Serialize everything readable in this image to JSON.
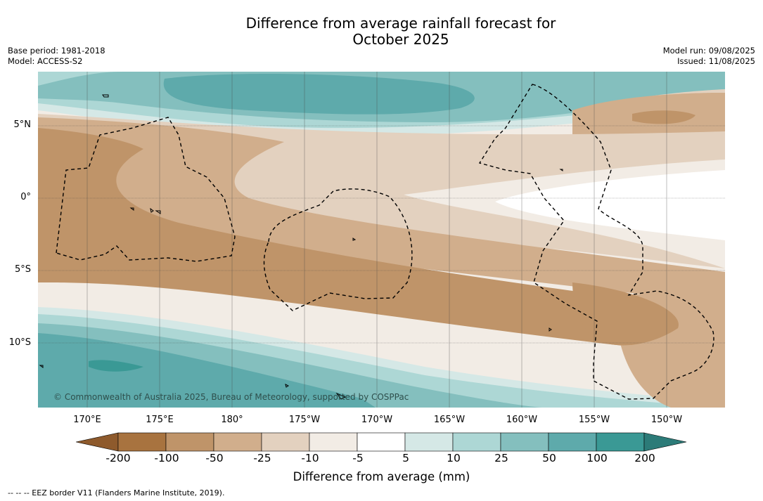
{
  "title": {
    "line1": "Difference from average rainfall forecast for",
    "line2": "October 2025"
  },
  "meta": {
    "base_period": "Base period: 1981-2018",
    "model": "Model: ACCESS-S2",
    "model_run": "Model run: 09/08/2025",
    "issued": "Issued: 11/08/2025"
  },
  "lat_labels": [
    "5°N",
    "0°",
    "5°S",
    "10°S"
  ],
  "lon_labels": [
    "170°E",
    "175°E",
    "180°",
    "175°W",
    "170°W",
    "165°W",
    "160°W",
    "155°W",
    "150°W"
  ],
  "credit": "© Commonwealth of Australia 2025, Bureau of Meteorology, supported by COSPPac",
  "colorbar": {
    "ticks": [
      "-200",
      "-100",
      "-50",
      "-25",
      "-10",
      "-5",
      "5",
      "10",
      "25",
      "50",
      "100",
      "200"
    ],
    "colors": [
      "#a8733f",
      "#bf9469",
      "#d1ae8c",
      "#e3d1bf",
      "#f2ece5",
      "#ffffff",
      "#d5e8e6",
      "#add7d5",
      "#84bfbe",
      "#5eaaab",
      "#3a9995"
    ],
    "low_extend_color": "#8e5a2c",
    "high_extend_color": "#2c7b78",
    "label": "Difference from average (mm)"
  },
  "footer": "--  --  -- EEZ border V11 (Flanders Marine Institute, 2019)."
}
